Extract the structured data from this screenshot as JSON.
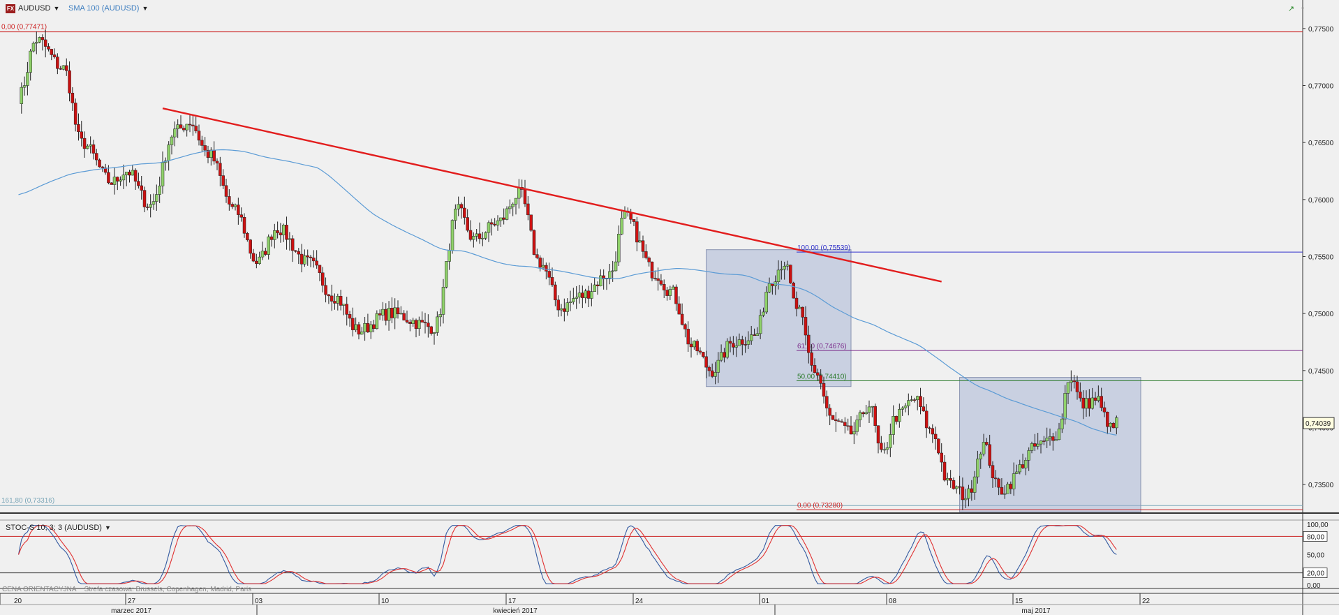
{
  "header": {
    "symbol": "AUDUSD",
    "symbol_badge": "FX",
    "indicator": "SMA 100 (AUDUSD)"
  },
  "oscillator": {
    "title": "STOC-S 10; 3; 3 (AUDUSD)",
    "scale_labels": [
      "100,00",
      "80,00",
      "50,00",
      "20,00",
      "0,00"
    ]
  },
  "footnote": {
    "label": "CENA ORIENTACYJNA",
    "timezone": "Strefa czasowa: Brussels, Copenhagen, Madrid, Paris"
  },
  "chart_data": {
    "type": "candlestick",
    "symbol": "AUDUSD",
    "ylim": [
      0.7325,
      0.7775
    ],
    "y_ticks": [
      "0,77500",
      "0,77000",
      "0,76500",
      "0,76000",
      "0,75500",
      "0,75000",
      "0,74500",
      "0,74000",
      "0,73500"
    ],
    "last_price": "0,74039",
    "x_day_labels": [
      "20",
      "27",
      "03",
      "10",
      "17",
      "24",
      "01",
      "08",
      "15",
      "22"
    ],
    "x_month_labels": [
      "marzec 2017",
      "kwiecień 2017",
      "maj 2017"
    ],
    "fib_levels_left": [
      {
        "label": "0,00 (0,77471)",
        "price": 0.77471
      },
      {
        "label": "161,80 (0,73316)",
        "price": 0.73316
      }
    ],
    "fib_levels_right": [
      {
        "label": "100,00 (0,75539)",
        "price": 0.75539,
        "color": "#3333cc"
      },
      {
        "label": "61,80 (0,74676)",
        "price": 0.74676,
        "color": "#7a2a8a"
      },
      {
        "label": "50,00 (0,74410)",
        "price": 0.7441,
        "color": "#2a7a2a"
      },
      {
        "label": "0,00 (0,73280)",
        "price": 0.7328,
        "color": "#cc2222"
      }
    ],
    "trendline": {
      "color": "#e21d1d",
      "from": {
        "date": "2017-03-28",
        "price": 0.768
      },
      "to": {
        "date": "2017-05-10",
        "price": 0.7528
      }
    },
    "sma_color": "#5b9bd5",
    "bull_color": "#8fd16a",
    "bear_color": "#cc1111",
    "stoch_k_color": "#345aa0",
    "stoch_d_color": "#e03030"
  }
}
